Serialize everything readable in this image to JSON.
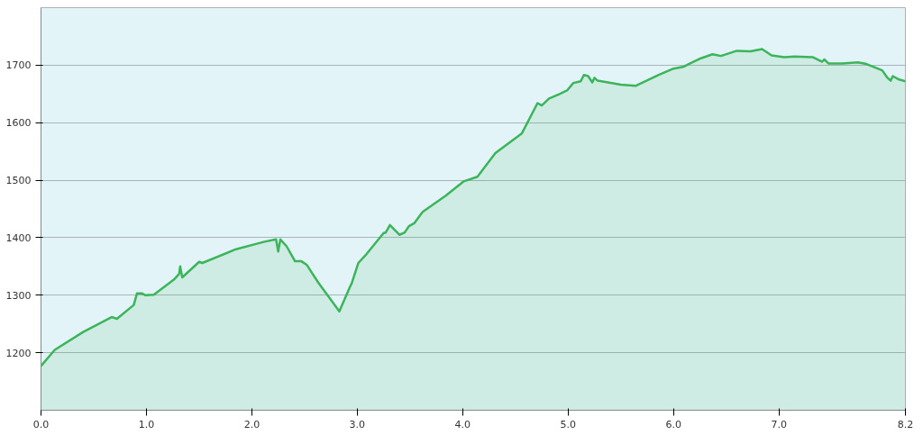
{
  "chart_data": {
    "type": "area",
    "series": [
      {
        "color": "#3cb55a",
        "x": [
          0,
          0.13,
          0.4,
          0.67,
          0.72,
          0.88,
          0.91,
          0.96,
          0.99,
          1.07,
          1.26,
          1.31,
          1.32,
          1.34,
          1.5,
          1.53,
          1.85,
          2.12,
          2.23,
          2.25,
          2.27,
          2.33,
          2.41,
          2.47,
          2.52,
          2.63,
          2.71,
          2.83,
          2.93,
          2.95,
          3.01,
          3.09,
          3.25,
          3.27,
          3.31,
          3.4,
          3.45,
          3.49,
          3.54,
          3.62,
          3.84,
          4.01,
          4.14,
          4.31,
          4.56,
          4.71,
          4.75,
          4.82,
          4.92,
          4.99,
          5.05,
          5.12,
          5.15,
          5.19,
          5.23,
          5.25,
          5.28,
          5.5,
          5.64,
          5.86,
          6.0,
          6.09,
          6.26,
          6.37,
          6.45,
          6.6,
          6.73,
          6.84,
          6.93,
          7.05,
          7.15,
          7.32,
          7.41,
          7.43,
          7.47,
          7.6,
          7.75,
          7.83,
          7.98,
          8.03,
          8.06,
          8.08,
          8.14,
          8.2
        ],
        "values": [
          1177,
          1205,
          1236,
          1262,
          1259,
          1283,
          1303,
          1303,
          1300,
          1301,
          1327,
          1337,
          1350,
          1331,
          1358,
          1356,
          1380,
          1393,
          1397,
          1376,
          1397,
          1385,
          1359,
          1359,
          1353,
          1322,
          1302,
          1272,
          1314,
          1322,
          1356,
          1372,
          1408,
          1409,
          1422,
          1405,
          1409,
          1420,
          1425,
          1445,
          1473,
          1498,
          1506,
          1547,
          1581,
          1634,
          1630,
          1642,
          1650,
          1656,
          1669,
          1672,
          1683,
          1681,
          1670,
          1678,
          1673,
          1666,
          1664,
          1683,
          1694,
          1697,
          1712,
          1719,
          1716,
          1725,
          1724,
          1728,
          1717,
          1714,
          1715,
          1714,
          1706,
          1710,
          1703,
          1703,
          1705,
          1702,
          1691,
          1678,
          1673,
          1681,
          1675,
          1672
        ]
      }
    ],
    "xlim": [
      0,
      8.2
    ],
    "xticks": [
      {
        "value": 0,
        "label": "0.0"
      },
      {
        "value": 1,
        "label": "1.0"
      },
      {
        "value": 2,
        "label": "2.0"
      },
      {
        "value": 3,
        "label": "3.0"
      },
      {
        "value": 4,
        "label": "4.0"
      },
      {
        "value": 5,
        "label": "5.0"
      },
      {
        "value": 6,
        "label": "6.0"
      },
      {
        "value": 7,
        "label": "7.0"
      },
      {
        "value": 8.2,
        "label": "8.2"
      }
    ],
    "ylim": [
      1100,
      1800
    ],
    "yticks": [
      1200,
      1300,
      1400,
      1500,
      1600,
      1700
    ],
    "grid": "y"
  }
}
